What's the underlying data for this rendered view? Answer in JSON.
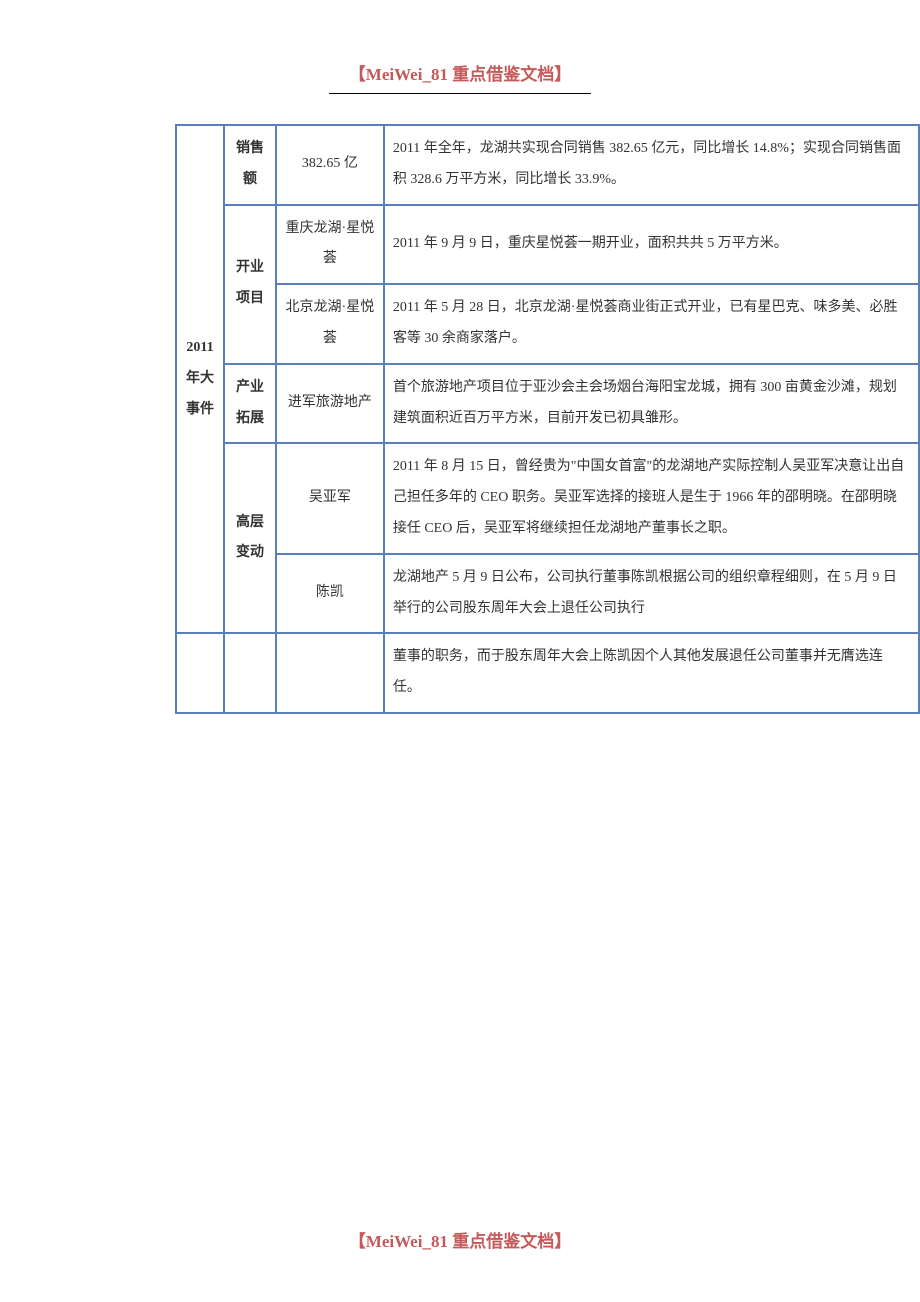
{
  "header": {
    "text": "【MeiWei_81 重点借鉴文档】"
  },
  "footer": {
    "text": "【MeiWei_81 重点借鉴文档】"
  },
  "colors": {
    "border": "#5b7fb8",
    "header_text": "#c55a5a",
    "body_text": "#333333",
    "background": "#ffffff"
  },
  "table": {
    "year_label": "2011年大事件",
    "rows": [
      {
        "category": "销售额",
        "sub": "382.65 亿",
        "desc": "2011 年全年，龙湖共实现合同销售 382.65 亿元，同比增长 14.8%；实现合同销售面积 328.6 万平方米，同比增长 33.9%。"
      },
      {
        "category": "开业项目",
        "subs": [
          {
            "sub": "重庆龙湖·星悦荟",
            "desc": "2011 年 9 月 9 日，重庆星悦荟一期开业，面积共共 5 万平方米。"
          },
          {
            "sub": "北京龙湖·星悦荟",
            "desc": "2011 年 5 月 28 日，北京龙湖·星悦荟商业街正式开业，已有星巴克、味多美、必胜客等 30 余商家落户。"
          }
        ]
      },
      {
        "category": "产业拓展",
        "sub": "进军旅游地产",
        "desc": "首个旅游地产项目位于亚沙会主会场烟台海阳宝龙城，拥有 300 亩黄金沙滩，规划建筑面积近百万平方米，目前开发已初具雏形。"
      },
      {
        "category": "高层变动",
        "subs": [
          {
            "sub": "吴亚军",
            "desc": "2011 年 8 月 15 日，曾经贵为\"中国女首富\"的龙湖地产实际控制人吴亚军决意让出自己担任多年的 CEO 职务。吴亚军选择的接班人是生于 1966 年的邵明晓。在邵明晓接任 CEO 后，吴亚军将继续担任龙湖地产董事长之职。"
          },
          {
            "sub": "陈凯",
            "desc": "龙湖地产 5 月 9 日公布，公司执行董事陈凯根据公司的组织章程细则，在 5 月 9 日举行的公司股东周年大会上退任公司执行"
          }
        ]
      }
    ],
    "continuation_row": {
      "desc": "董事的职务，而于股东周年大会上陈凯因个人其他发展退任公司董事并无膺选连任。"
    }
  }
}
